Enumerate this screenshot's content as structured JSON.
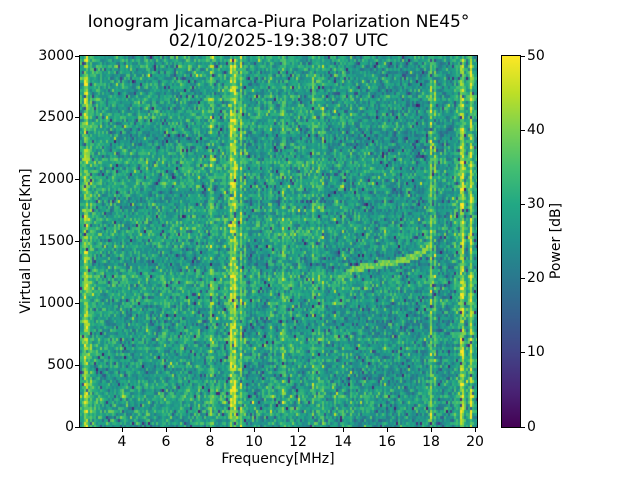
{
  "title": {
    "text": "Ionogram Jicamarca-Piura Polarization NE45°",
    "date": "02/10/2025-19:38:07 UTC"
  },
  "chart_data": {
    "type": "heatmap",
    "title": "Ionogram Jicamarca-Piura Polarization NE45°",
    "subtitle": "02/10/2025-19:38:07 UTC",
    "xlabel": "Frequency[MHz]",
    "ylabel": "Virtual Distance[Km]",
    "colorbar_label": "Power [dB]",
    "xlim": [
      2.1,
      20.05
    ],
    "ylim": [
      0,
      3000
    ],
    "clim": [
      0,
      50
    ],
    "xticks": [
      4,
      6,
      8,
      10,
      12,
      14,
      16,
      18,
      20
    ],
    "yticks": [
      0,
      500,
      1000,
      1500,
      2000,
      2500,
      3000
    ],
    "colorbar_ticks": [
      0,
      10,
      20,
      30,
      40,
      50
    ],
    "grid": false,
    "colormap": "viridis",
    "viridis_stops": [
      "#440154",
      "#482475",
      "#414487",
      "#355f8d",
      "#2a788e",
      "#21918c",
      "#22a884",
      "#44bf70",
      "#7ad151",
      "#bddf26",
      "#fde725"
    ],
    "background_noise": {
      "mean_db": 27.5,
      "std_db": 4.5,
      "dark_speck_prob": 0.035,
      "dark_speck_range_db": [
        4,
        16
      ],
      "bright_speck_prob": 0.03,
      "bright_speck_boost_db": 8
    },
    "broad_bands": [
      {
        "f1": 2.1,
        "f2": 3.1,
        "delta_db": 2
      },
      {
        "f1": 9.65,
        "f2": 10.45,
        "delta_db": -1.5
      },
      {
        "f1": 13.15,
        "f2": 13.6,
        "delta_db": -1
      },
      {
        "f1": 14.0,
        "f2": 17.8,
        "delta_db": -1.5
      },
      {
        "f1": 18.2,
        "f2": 19.05,
        "delta_db": -2.5
      }
    ],
    "rfi_stripes": [
      {
        "f": 2.37,
        "boost_db": 16,
        "width_mhz": 0.1
      },
      {
        "f": 2.6,
        "boost_db": 6,
        "width_mhz": 0.06
      },
      {
        "f": 3.72,
        "boost_db": 6,
        "width_mhz": 0.04
      },
      {
        "f": 4.05,
        "boost_db": 4,
        "width_mhz": 0.05
      },
      {
        "f": 4.78,
        "boost_db": 3,
        "width_mhz": 0.05
      },
      {
        "f": 5.1,
        "boost_db": 3,
        "width_mhz": 0.05
      },
      {
        "f": 5.85,
        "boost_db": 4,
        "width_mhz": 0.06
      },
      {
        "f": 6.7,
        "boost_db": 8,
        "width_mhz": 0.04
      },
      {
        "f": 7.0,
        "boost_db": 4,
        "width_mhz": 0.04
      },
      {
        "f": 7.45,
        "boost_db": 7,
        "width_mhz": 0.05
      },
      {
        "f": 8.05,
        "boost_db": 12,
        "width_mhz": 0.1
      },
      {
        "f": 8.65,
        "boost_db": 6,
        "width_mhz": 0.06
      },
      {
        "f": 8.95,
        "boost_db": 18,
        "width_mhz": 0.09
      },
      {
        "f": 9.12,
        "boost_db": 18,
        "width_mhz": 0.07
      },
      {
        "f": 9.37,
        "boost_db": 14,
        "width_mhz": 0.05
      },
      {
        "f": 9.55,
        "boost_db": 7,
        "width_mhz": 0.05
      },
      {
        "f": 9.95,
        "boost_db": 6,
        "width_mhz": 0.05
      },
      {
        "f": 10.2,
        "boost_db": 5,
        "width_mhz": 0.05
      },
      {
        "f": 10.7,
        "boost_db": 8,
        "width_mhz": 0.07
      },
      {
        "f": 11.3,
        "boost_db": 11,
        "width_mhz": 0.08
      },
      {
        "f": 11.68,
        "boost_db": 6,
        "width_mhz": 0.05
      },
      {
        "f": 12.0,
        "boost_db": 4,
        "width_mhz": 0.05
      },
      {
        "f": 12.65,
        "boost_db": 10,
        "width_mhz": 0.06
      },
      {
        "f": 12.87,
        "boost_db": 9,
        "width_mhz": 0.05
      },
      {
        "f": 13.07,
        "boost_db": 7,
        "width_mhz": 0.05
      },
      {
        "f": 13.63,
        "boost_db": 4,
        "width_mhz": 0.05
      },
      {
        "f": 14.0,
        "boost_db": 4,
        "width_mhz": 0.05
      },
      {
        "f": 14.35,
        "boost_db": 5,
        "width_mhz": 0.05
      },
      {
        "f": 14.95,
        "boost_db": 4,
        "width_mhz": 0.05
      },
      {
        "f": 15.3,
        "boost_db": 3,
        "width_mhz": 0.05
      },
      {
        "f": 15.9,
        "boost_db": 5,
        "width_mhz": 0.05
      },
      {
        "f": 16.55,
        "boost_db": 4,
        "width_mhz": 0.05
      },
      {
        "f": 17.0,
        "boost_db": 3,
        "width_mhz": 0.05
      },
      {
        "f": 17.95,
        "boost_db": 16,
        "width_mhz": 0.05
      },
      {
        "f": 18.15,
        "boost_db": 9,
        "width_mhz": 0.05
      },
      {
        "f": 18.6,
        "boost_db": 5,
        "width_mhz": 0.05
      },
      {
        "f": 19.1,
        "boost_db": 7,
        "width_mhz": 0.05
      },
      {
        "f": 19.38,
        "boost_db": 20,
        "width_mhz": 0.1
      },
      {
        "f": 19.78,
        "boost_db": 18,
        "width_mhz": 0.08
      }
    ],
    "echo_trace": {
      "points": [
        [
          13.75,
          1165
        ],
        [
          14.0,
          1215
        ],
        [
          14.3,
          1260
        ],
        [
          14.8,
          1288
        ],
        [
          15.4,
          1308
        ],
        [
          16.1,
          1328
        ],
        [
          16.8,
          1352
        ],
        [
          17.25,
          1378
        ],
        [
          17.5,
          1400
        ],
        [
          17.68,
          1425
        ],
        [
          17.82,
          1455
        ]
      ],
      "power_db": 37,
      "thickness_km": 26
    }
  },
  "figure": {
    "background": "#ffffff",
    "spine_color": "#000000",
    "text_color": "#000000"
  }
}
